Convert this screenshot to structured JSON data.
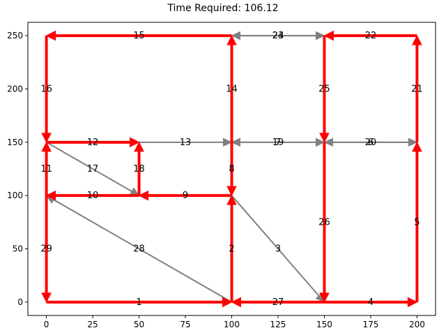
{
  "chart_data": {
    "type": "network",
    "title": "Time Required: 106.12",
    "xlabel": "",
    "ylabel": "",
    "xlim": [
      -10,
      210
    ],
    "ylim": [
      -12.5,
      262.5
    ],
    "x_ticks": [
      0,
      25,
      50,
      75,
      100,
      125,
      150,
      175,
      200
    ],
    "y_ticks": [
      0,
      50,
      100,
      150,
      200,
      250
    ],
    "grid": false,
    "colors": {
      "highlighted": "#ff0000",
      "normal": "#808080"
    },
    "edges": [
      {
        "label": "1",
        "from": [
          0,
          0
        ],
        "to": [
          100,
          0
        ],
        "highlighted": true
      },
      {
        "label": "2",
        "from": [
          100,
          0
        ],
        "to": [
          100,
          100
        ],
        "highlighted": true
      },
      {
        "label": "3",
        "from": [
          100,
          100
        ],
        "to": [
          150,
          0
        ],
        "highlighted": false
      },
      {
        "label": "4",
        "from": [
          150,
          0
        ],
        "to": [
          200,
          0
        ],
        "highlighted": true
      },
      {
        "label": "5",
        "from": [
          200,
          0
        ],
        "to": [
          200,
          150
        ],
        "highlighted": true
      },
      {
        "label": "6",
        "from": [
          200,
          150
        ],
        "to": [
          150,
          150
        ],
        "highlighted": false
      },
      {
        "label": "7",
        "from": [
          150,
          150
        ],
        "to": [
          100,
          150
        ],
        "highlighted": false
      },
      {
        "label": "8",
        "from": [
          100,
          150
        ],
        "to": [
          100,
          100
        ],
        "highlighted": true
      },
      {
        "label": "9",
        "from": [
          100,
          100
        ],
        "to": [
          50,
          100
        ],
        "highlighted": true
      },
      {
        "label": "10",
        "from": [
          50,
          100
        ],
        "to": [
          0,
          100
        ],
        "highlighted": true
      },
      {
        "label": "11",
        "from": [
          0,
          100
        ],
        "to": [
          0,
          150
        ],
        "highlighted": true
      },
      {
        "label": "12",
        "from": [
          0,
          150
        ],
        "to": [
          50,
          150
        ],
        "highlighted": true
      },
      {
        "label": "13",
        "from": [
          50,
          150
        ],
        "to": [
          100,
          150
        ],
        "highlighted": false
      },
      {
        "label": "14",
        "from": [
          100,
          150
        ],
        "to": [
          100,
          250
        ],
        "highlighted": true
      },
      {
        "label": "15",
        "from": [
          100,
          250
        ],
        "to": [
          0,
          250
        ],
        "highlighted": true
      },
      {
        "label": "16",
        "from": [
          0,
          250
        ],
        "to": [
          0,
          150
        ],
        "highlighted": true
      },
      {
        "label": "17",
        "from": [
          0,
          150
        ],
        "to": [
          50,
          100
        ],
        "highlighted": false
      },
      {
        "label": "18",
        "from": [
          50,
          100
        ],
        "to": [
          50,
          150
        ],
        "highlighted": true
      },
      {
        "label": "19",
        "from": [
          100,
          150
        ],
        "to": [
          150,
          150
        ],
        "highlighted": false
      },
      {
        "label": "20",
        "from": [
          150,
          150
        ],
        "to": [
          200,
          150
        ],
        "highlighted": false
      },
      {
        "label": "21",
        "from": [
          200,
          150
        ],
        "to": [
          200,
          250
        ],
        "highlighted": true
      },
      {
        "label": "22",
        "from": [
          200,
          250
        ],
        "to": [
          150,
          250
        ],
        "highlighted": true
      },
      {
        "label": "23",
        "from": [
          150,
          250
        ],
        "to": [
          100,
          250
        ],
        "highlighted": false
      },
      {
        "label": "24",
        "from": [
          100,
          250
        ],
        "to": [
          150,
          250
        ],
        "highlighted": false
      },
      {
        "label": "25",
        "from": [
          150,
          250
        ],
        "to": [
          150,
          150
        ],
        "highlighted": true
      },
      {
        "label": "26",
        "from": [
          150,
          150
        ],
        "to": [
          150,
          0
        ],
        "highlighted": true
      },
      {
        "label": "27",
        "from": [
          150,
          0
        ],
        "to": [
          100,
          0
        ],
        "highlighted": true
      },
      {
        "label": "28",
        "from": [
          100,
          0
        ],
        "to": [
          0,
          100
        ],
        "highlighted": false
      },
      {
        "label": "29",
        "from": [
          0,
          100
        ],
        "to": [
          0,
          0
        ],
        "highlighted": true
      }
    ]
  }
}
